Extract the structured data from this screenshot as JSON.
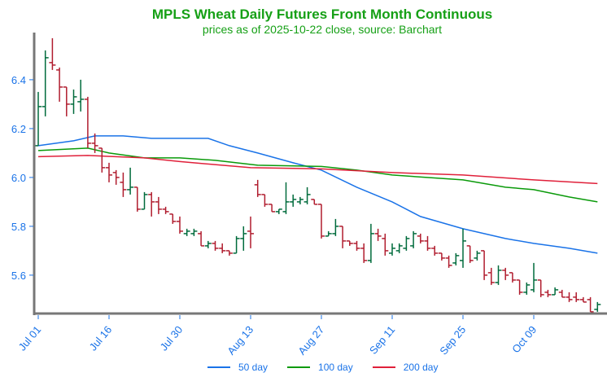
{
  "chart_data": {
    "type": "ohlc",
    "title": "MPLS Wheat Daily Futures Front Month Continuous",
    "subtitle": "prices as of 2025-10-22 close, source: Barchart",
    "xlabel": "",
    "ylabel": "",
    "ylim": [
      5.443,
      6.593
    ],
    "yticks": [
      "6.4",
      "6.2",
      "6.0",
      "5.8",
      "5.6"
    ],
    "xticks": [
      {
        "index": 0,
        "label": "Jul 01"
      },
      {
        "index": 10,
        "label": "Jul 16"
      },
      {
        "index": 20,
        "label": "Jul 30"
      },
      {
        "index": 30,
        "label": "Aug 13"
      },
      {
        "index": 40,
        "label": "Aug 27"
      },
      {
        "index": 50,
        "label": "Sep 11"
      },
      {
        "index": 60,
        "label": "Sep 25"
      },
      {
        "index": 70,
        "label": "Oct 09"
      }
    ],
    "ohlc": [
      [
        6.13,
        6.35,
        6.13,
        6.29
      ],
      [
        6.29,
        6.52,
        6.25,
        6.49
      ],
      [
        6.47,
        6.57,
        6.44,
        6.46
      ],
      [
        6.44,
        6.45,
        6.31,
        6.37
      ],
      [
        6.37,
        6.37,
        6.25,
        6.3
      ],
      [
        6.3,
        6.36,
        6.26,
        6.33
      ],
      [
        6.31,
        6.4,
        6.27,
        6.32
      ],
      [
        6.32,
        6.33,
        6.12,
        6.14
      ],
      [
        6.14,
        6.18,
        6.1,
        6.13
      ],
      [
        6.12,
        6.12,
        6.02,
        6.04
      ],
      [
        6.04,
        6.06,
        5.98,
        6.01
      ],
      [
        6.02,
        6.03,
        5.97,
        6.0
      ],
      [
        5.98,
        6.02,
        5.92,
        5.95
      ],
      [
        5.95,
        6.04,
        5.93,
        5.96
      ],
      [
        5.96,
        5.96,
        5.86,
        5.87
      ],
      [
        5.87,
        5.94,
        5.87,
        5.93
      ],
      [
        5.93,
        5.94,
        5.84,
        5.9
      ],
      [
        5.9,
        5.92,
        5.85,
        5.87
      ],
      [
        5.87,
        5.88,
        5.85,
        5.86
      ],
      [
        5.85,
        5.85,
        5.81,
        5.82
      ],
      [
        5.82,
        5.84,
        5.77,
        5.78
      ],
      [
        5.77,
        5.79,
        5.76,
        5.78
      ],
      [
        5.77,
        5.79,
        5.76,
        5.78
      ],
      [
        5.77,
        5.78,
        5.72,
        5.72
      ],
      [
        5.72,
        5.74,
        5.71,
        5.73
      ],
      [
        5.73,
        5.74,
        5.7,
        5.71
      ],
      [
        5.71,
        5.73,
        5.69,
        5.7
      ],
      [
        5.7,
        5.7,
        5.68,
        5.69
      ],
      [
        5.69,
        5.76,
        5.69,
        5.75
      ],
      [
        5.75,
        5.8,
        5.7,
        5.77
      ],
      [
        5.78,
        5.84,
        5.71,
        5.77
      ],
      [
        5.97,
        5.99,
        5.92,
        5.93
      ],
      [
        5.93,
        5.93,
        5.88,
        5.89
      ],
      [
        5.89,
        5.89,
        5.86,
        5.86
      ],
      [
        5.86,
        5.87,
        5.85,
        5.87
      ],
      [
        5.86,
        5.98,
        5.85,
        5.9
      ],
      [
        5.9,
        5.93,
        5.88,
        5.91
      ],
      [
        5.9,
        5.92,
        5.89,
        5.91
      ],
      [
        5.9,
        5.96,
        5.89,
        5.93
      ],
      [
        5.91,
        5.91,
        5.89,
        5.89
      ],
      [
        5.89,
        5.89,
        5.75,
        5.76
      ],
      [
        5.76,
        5.78,
        5.76,
        5.77
      ],
      [
        5.77,
        5.83,
        5.76,
        5.8
      ],
      [
        5.8,
        5.8,
        5.71,
        5.74
      ],
      [
        5.74,
        5.74,
        5.72,
        5.73
      ],
      [
        5.73,
        5.74,
        5.7,
        5.71
      ],
      [
        5.71,
        5.73,
        5.65,
        5.66
      ],
      [
        5.66,
        5.81,
        5.65,
        5.77
      ],
      [
        5.77,
        5.79,
        5.74,
        5.76
      ],
      [
        5.75,
        5.77,
        5.68,
        5.7
      ],
      [
        5.69,
        5.73,
        5.68,
        5.71
      ],
      [
        5.7,
        5.73,
        5.69,
        5.72
      ],
      [
        5.71,
        5.76,
        5.7,
        5.75
      ],
      [
        5.72,
        5.78,
        5.71,
        5.77
      ],
      [
        5.76,
        5.77,
        5.73,
        5.74
      ],
      [
        5.74,
        5.76,
        5.7,
        5.71
      ],
      [
        5.71,
        5.72,
        5.68,
        5.69
      ],
      [
        5.69,
        5.69,
        5.66,
        5.67
      ],
      [
        5.67,
        5.68,
        5.63,
        5.64
      ],
      [
        5.65,
        5.69,
        5.64,
        5.68
      ],
      [
        5.66,
        5.79,
        5.63,
        5.74
      ],
      [
        5.72,
        5.72,
        5.65,
        5.66
      ],
      [
        5.67,
        5.7,
        5.66,
        5.69
      ],
      [
        5.7,
        5.7,
        5.58,
        5.6
      ],
      [
        5.61,
        5.63,
        5.56,
        5.57
      ],
      [
        5.57,
        5.64,
        5.56,
        5.62
      ],
      [
        5.62,
        5.63,
        5.58,
        5.6
      ],
      [
        5.61,
        5.61,
        5.57,
        5.58
      ],
      [
        5.58,
        5.58,
        5.52,
        5.53
      ],
      [
        5.53,
        5.57,
        5.52,
        5.56
      ],
      [
        5.54,
        5.65,
        5.53,
        5.58
      ],
      [
        5.58,
        5.58,
        5.51,
        5.52
      ],
      [
        5.53,
        5.54,
        5.51,
        5.52
      ],
      [
        5.52,
        5.55,
        5.52,
        5.54
      ],
      [
        5.53,
        5.54,
        5.51,
        5.51
      ],
      [
        5.51,
        5.53,
        5.49,
        5.5
      ],
      [
        5.51,
        5.53,
        5.49,
        5.5
      ],
      [
        5.5,
        5.51,
        5.49,
        5.49
      ],
      [
        5.5,
        5.51,
        5.45,
        5.45
      ],
      [
        5.46,
        5.49,
        5.45,
        5.48
      ]
    ],
    "series": [
      {
        "name": "50 day",
        "color": "#1a73e8",
        "points": [
          [
            0,
            6.13
          ],
          [
            5,
            6.15
          ],
          [
            8,
            6.17
          ],
          [
            12,
            6.17
          ],
          [
            16,
            6.16
          ],
          [
            24,
            6.16
          ],
          [
            27,
            6.13
          ],
          [
            31,
            6.1
          ],
          [
            36,
            6.06
          ],
          [
            40,
            6.03
          ],
          [
            45,
            5.96
          ],
          [
            50,
            5.9
          ],
          [
            54,
            5.84
          ],
          [
            60,
            5.79
          ],
          [
            66,
            5.75
          ],
          [
            70,
            5.73
          ],
          [
            75,
            5.71
          ],
          [
            79,
            5.69
          ]
        ]
      },
      {
        "name": "100 day",
        "color": "#0a9a0a",
        "points": [
          [
            0,
            6.11
          ],
          [
            7,
            6.12
          ],
          [
            10,
            6.1
          ],
          [
            15,
            6.08
          ],
          [
            20,
            6.08
          ],
          [
            25,
            6.07
          ],
          [
            31,
            6.05
          ],
          [
            40,
            6.045
          ],
          [
            45,
            6.03
          ],
          [
            50,
            6.01
          ],
          [
            60,
            5.99
          ],
          [
            66,
            5.96
          ],
          [
            70,
            5.95
          ],
          [
            75,
            5.92
          ],
          [
            79,
            5.9
          ]
        ]
      },
      {
        "name": "200 day",
        "color": "#e0203a",
        "points": [
          [
            0,
            6.085
          ],
          [
            7,
            6.09
          ],
          [
            15,
            6.08
          ],
          [
            20,
            6.065
          ],
          [
            30,
            6.04
          ],
          [
            40,
            6.035
          ],
          [
            50,
            6.02
          ],
          [
            60,
            6.01
          ],
          [
            70,
            5.99
          ],
          [
            79,
            5.975
          ]
        ]
      }
    ],
    "up_color": "#006b3c",
    "down_color": "#b01c2e",
    "legend": "bottom"
  }
}
